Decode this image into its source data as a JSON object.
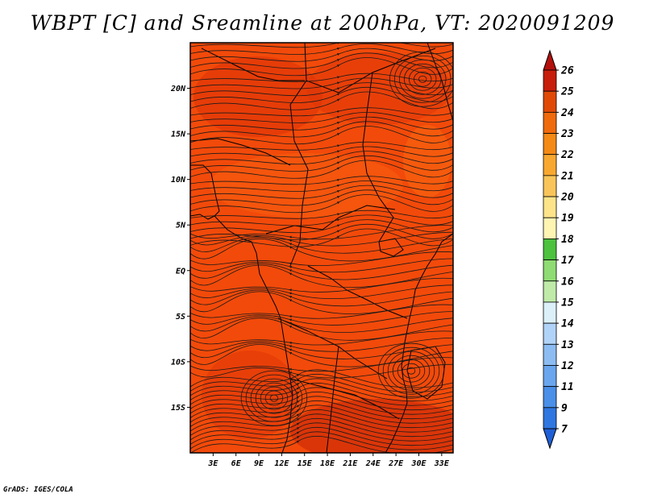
{
  "chart_data": {
    "type": "heatmap",
    "title": "WBPT [C] and Sreamline at 200hPa, VT: 2020091209",
    "variable": "WBPT [C]",
    "overlay": "Streamline",
    "level": "200hPa",
    "valid_time": "2020091209",
    "x_ticks": [
      "3E",
      "6E",
      "9E",
      "12E",
      "15E",
      "18E",
      "21E",
      "24E",
      "27E",
      "30E",
      "33E"
    ],
    "x_tick_values": [
      3,
      6,
      9,
      12,
      15,
      18,
      21,
      24,
      27,
      30,
      33
    ],
    "y_ticks": [
      "20N",
      "15N",
      "10N",
      "5N",
      "EQ",
      "5S",
      "10S",
      "15S"
    ],
    "y_tick_values": [
      20,
      15,
      10,
      5,
      0,
      -5,
      -10,
      -15
    ],
    "xlim": [
      0,
      34.5
    ],
    "ylim": [
      -20,
      25
    ],
    "colorbar": {
      "labels": [
        "7",
        "9",
        "11",
        "12",
        "13",
        "14",
        "15",
        "16",
        "17",
        "18",
        "19",
        "20",
        "21",
        "22",
        "23",
        "24",
        "25",
        "26"
      ],
      "colors": [
        "#1f5fd6",
        "#2f76e0",
        "#4a8fe8",
        "#6aa6ee",
        "#8cbcf2",
        "#b1d3f7",
        "#dcf0f9",
        "#bfeaa8",
        "#8edc73",
        "#4cc23e",
        "#fff5b3",
        "#fde48a",
        "#f9c55a",
        "#f8a830",
        "#f48916",
        "#ef6a0c",
        "#e04a06",
        "#c81e0c",
        "#b4100c"
      ],
      "min_label": "7",
      "max_label": "26"
    },
    "field_summary": "WBPT mostly 23-25 C over the domain (dark orange-red), darker 24-25 C patches near 15-20N and south of 12S",
    "vortices": [
      {
        "lon": 11.0,
        "lat": -14.0,
        "sense": "cyclonic"
      },
      {
        "lon": 30.5,
        "lat": 21.0,
        "sense": "anticyclonic"
      },
      {
        "lon": 29.0,
        "lat": -11.0,
        "sense": "anticyclonic"
      }
    ]
  },
  "footer": {
    "credit": "GrADS: IGES/COLA"
  },
  "colors": {
    "field_base": "#f24a0a",
    "field_dark": "#d82e0a",
    "field_light": "#f86a10",
    "streamline": "#1a1a1a",
    "coast": "#000000"
  }
}
